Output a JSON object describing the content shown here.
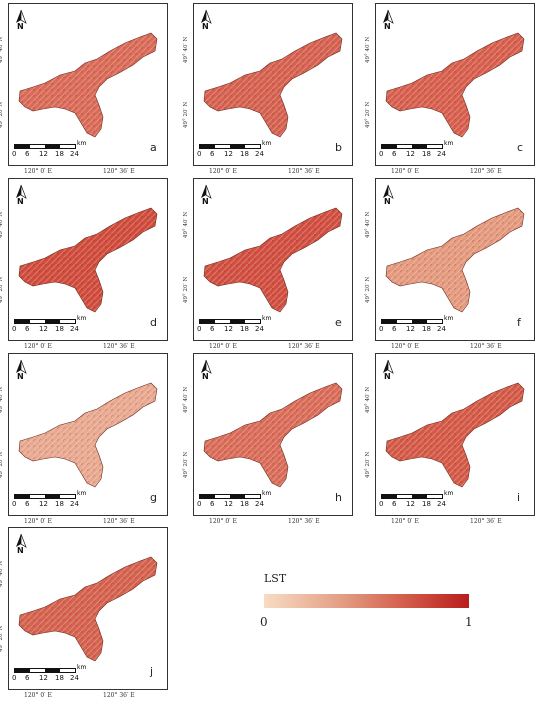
{
  "figure": {
    "panels": [
      {
        "letter": "a",
        "shade": "#d96b58"
      },
      {
        "letter": "b",
        "shade": "#d56250"
      },
      {
        "letter": "c",
        "shade": "#d75f4e"
      },
      {
        "letter": "d",
        "shade": "#cf4c3c"
      },
      {
        "letter": "e",
        "shade": "#d04f40"
      },
      {
        "letter": "f",
        "shade": "#e49a7e"
      },
      {
        "letter": "g",
        "shade": "#e8a990"
      },
      {
        "letter": "h",
        "shade": "#d96d5a"
      },
      {
        "letter": "i",
        "shade": "#d45a48"
      },
      {
        "letter": "j",
        "shade": "#d4624e"
      }
    ],
    "north_label": "N",
    "lat_labels": [
      "49° 40′ N",
      "49° 20′ N"
    ],
    "lon_labels": [
      "120° 0′ E",
      "120° 36′ E"
    ],
    "scale_unit": "km",
    "scale_ticks": [
      "0",
      "6",
      "12",
      "18",
      "24"
    ]
  },
  "legend": {
    "title": "LST",
    "min": "0",
    "max": "1",
    "colors": [
      "#f7dcc3",
      "#b81d1d"
    ]
  }
}
